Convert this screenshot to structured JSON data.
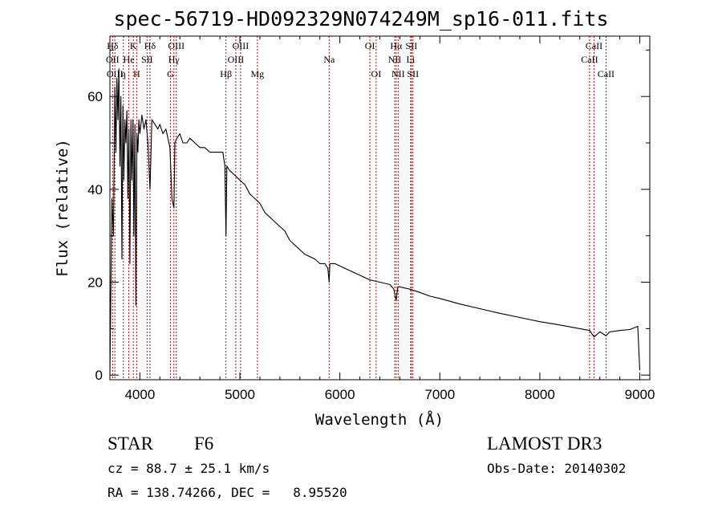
{
  "title": "spec-56719-HD092329N074249M_sp16-011.fits",
  "info": {
    "class_label": "STAR",
    "subclass": "F6",
    "survey": "LAMOST DR3",
    "cz": "cz = 88.7 ± 25.1 km/s",
    "obs_date": "Obs-Date: 20140302",
    "radec": "RA = 138.74266, DEC =   8.95520"
  },
  "chart_data": {
    "type": "line",
    "title": "spec-56719-HD092329N074249M_sp16-011.fits",
    "xlabel": "Wavelength (Å)",
    "ylabel": "Flux (relative)",
    "xlim": [
      3700,
      9100
    ],
    "ylim": [
      -1,
      73
    ],
    "x_ticks": [
      4000,
      5000,
      6000,
      7000,
      8000,
      9000
    ],
    "x_tick_labels": [
      "4000",
      "5000",
      "6000",
      "7000",
      "8000",
      "9000"
    ],
    "y_ticks": [
      0,
      20,
      40,
      60
    ],
    "y_tick_labels": [
      "0",
      "20",
      "40",
      "60"
    ],
    "series": [
      {
        "name": "spectrum",
        "x": [
          3700,
          3720,
          3735,
          3750,
          3760,
          3770,
          3780,
          3790,
          3800,
          3810,
          3820,
          3830,
          3840,
          3850,
          3860,
          3870,
          3880,
          3890,
          3900,
          3910,
          3920,
          3930,
          3940,
          3950,
          3960,
          3970,
          3980,
          3990,
          4000,
          4020,
          4040,
          4060,
          4080,
          4101,
          4120,
          4150,
          4180,
          4200,
          4230,
          4260,
          4300,
          4320,
          4340,
          4350,
          4370,
          4400,
          4430,
          4470,
          4500,
          4550,
          4600,
          4650,
          4700,
          4750,
          4800,
          4830,
          4850,
          4861,
          4870,
          4900,
          4950,
          5000,
          5050,
          5100,
          5150,
          5200,
          5250,
          5300,
          5350,
          5400,
          5450,
          5500,
          5550,
          5600,
          5650,
          5700,
          5750,
          5800,
          5850,
          5880,
          5893,
          5900,
          5920,
          5950,
          6000,
          6100,
          6200,
          6300,
          6400,
          6500,
          6540,
          6563,
          6580,
          6600,
          6700,
          6800,
          6900,
          7000,
          7200,
          7400,
          7600,
          7800,
          8000,
          8200,
          8400,
          8500,
          8542,
          8600,
          8662,
          8700,
          8800,
          8900,
          8980,
          9000
        ],
        "values": [
          0,
          38,
          30,
          62,
          48,
          64,
          55,
          66,
          45,
          60,
          25,
          58,
          42,
          55,
          50,
          57,
          38,
          53,
          24,
          55,
          42,
          55,
          30,
          54,
          15,
          52,
          48,
          55,
          52,
          56,
          53,
          55,
          50,
          40,
          55,
          54,
          53,
          54,
          52,
          53,
          49,
          38,
          36,
          50,
          51,
          52,
          50,
          50,
          51,
          50,
          49,
          49,
          48,
          48,
          48,
          48,
          45,
          30,
          45,
          44,
          43,
          42,
          41,
          39,
          38,
          37,
          35,
          34,
          33,
          32,
          31,
          29,
          28,
          27,
          26,
          25.5,
          25,
          24,
          24,
          23,
          20,
          24,
          24,
          24,
          23.5,
          22.5,
          21.5,
          20.5,
          20,
          19.5,
          18.5,
          16,
          19,
          19,
          18.5,
          17.8,
          17,
          16.5,
          15.3,
          14.3,
          13.3,
          12.4,
          11.5,
          10.8,
          10,
          9.6,
          8.2,
          9.3,
          8.5,
          9.3,
          9.6,
          9.8,
          10.5,
          1
        ]
      }
    ],
    "line_markers": [
      {
        "label": "Hδ",
        "wavelength": 3727,
        "row": 0
      },
      {
        "label": "K",
        "wavelength": 3934,
        "row": 0
      },
      {
        "label": "Hδ",
        "wavelength": 4101,
        "row": 0
      },
      {
        "label": "OIII",
        "wavelength": 4364,
        "row": 0
      },
      {
        "label": "OIII",
        "wavelength": 5007,
        "row": 0
      },
      {
        "label": "OI",
        "wavelength": 6300,
        "row": 0
      },
      {
        "label": "Hα",
        "wavelength": 6563,
        "row": 0
      },
      {
        "label": "SII",
        "wavelength": 6716,
        "row": 0
      },
      {
        "label": "CaII",
        "wavelength": 8542,
        "row": 0
      },
      {
        "label": "OII",
        "wavelength": 3727,
        "row": 1
      },
      {
        "label": "He",
        "wavelength": 3889,
        "row": 1
      },
      {
        "label": "SII",
        "wavelength": 4072,
        "row": 1
      },
      {
        "label": "Hγ",
        "wavelength": 4340,
        "row": 1
      },
      {
        "label": "OIII",
        "wavelength": 4959,
        "row": 1
      },
      {
        "label": "Na",
        "wavelength": 5893,
        "row": 1
      },
      {
        "label": "NII",
        "wavelength": 6548,
        "row": 1
      },
      {
        "label": "Li",
        "wavelength": 6708,
        "row": 1
      },
      {
        "label": "CaII",
        "wavelength": 8498,
        "row": 1
      },
      {
        "label": "OIII",
        "wavelength": 3750,
        "row": 2
      },
      {
        "label": "η",
        "wavelength": 3835,
        "row": 2
      },
      {
        "label": "H",
        "wavelength": 3968,
        "row": 2
      },
      {
        "label": "G",
        "wavelength": 4305,
        "row": 2
      },
      {
        "label": "Hβ",
        "wavelength": 4861,
        "row": 2
      },
      {
        "label": "Mg",
        "wavelength": 5175,
        "row": 2
      },
      {
        "label": "OI",
        "wavelength": 6363,
        "row": 2
      },
      {
        "label": "NII",
        "wavelength": 6583,
        "row": 2
      },
      {
        "label": "SII",
        "wavelength": 6731,
        "row": 2
      },
      {
        "label": "CaII",
        "wavelength": 8662,
        "row": 2
      }
    ]
  }
}
